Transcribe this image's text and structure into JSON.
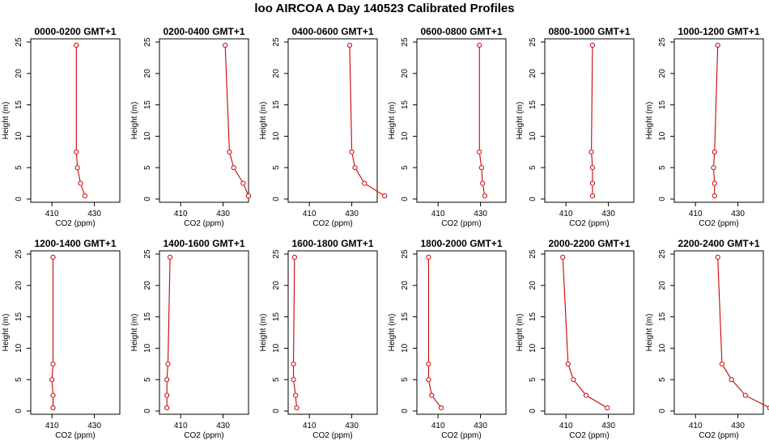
{
  "page": {
    "title": "loo AIRCOA A  Day 140523  Calibrated Profiles"
  },
  "chart_data": [
    {
      "type": "line",
      "title": "0000-0200 GMT+1",
      "xlabel": "CO2 (ppm)",
      "ylabel": "Height (m)",
      "xlim": [
        400,
        442
      ],
      "ylim": [
        0,
        25
      ],
      "x_ticks": [
        410,
        430
      ],
      "y_ticks": [
        0,
        5,
        10,
        15,
        20,
        25
      ],
      "color": "#cc0000",
      "series": [
        {
          "x": [
            425.5,
            423.5,
            422.0,
            421.5,
            421.5
          ],
          "y": [
            0.5,
            2.5,
            5,
            7.5,
            24.5
          ]
        }
      ]
    },
    {
      "type": "line",
      "title": "0200-0400 GMT+1",
      "xlabel": "CO2 (ppm)",
      "ylabel": "Height (m)",
      "xlim": [
        400,
        442
      ],
      "ylim": [
        0,
        25
      ],
      "x_ticks": [
        410,
        430
      ],
      "y_ticks": [
        0,
        5,
        10,
        15,
        20,
        25
      ],
      "color": "#cc0000",
      "series": [
        {
          "x": [
            442.0,
            439.5,
            435.0,
            433.0,
            431.0
          ],
          "y": [
            0.5,
            2.5,
            5,
            7.5,
            24.5
          ]
        }
      ]
    },
    {
      "type": "line",
      "title": "0400-0600 GMT+1",
      "xlabel": "CO2 (ppm)",
      "ylabel": "Height (m)",
      "xlim": [
        400,
        442
      ],
      "ylim": [
        0,
        25
      ],
      "x_ticks": [
        410,
        430
      ],
      "y_ticks": [
        0,
        5,
        10,
        15,
        20,
        25
      ],
      "color": "#cc0000",
      "series": [
        {
          "x": [
            445.5,
            436.0,
            431.5,
            430.0,
            429.0
          ],
          "y": [
            0.5,
            2.5,
            5,
            7.5,
            24.5
          ]
        }
      ]
    },
    {
      "type": "line",
      "title": "0600-0800 GMT+1",
      "xlabel": "CO2 (ppm)",
      "ylabel": "Height (m)",
      "xlim": [
        400,
        442
      ],
      "ylim": [
        0,
        25
      ],
      "x_ticks": [
        410,
        430
      ],
      "y_ticks": [
        0,
        5,
        10,
        15,
        20,
        25
      ],
      "color": "#cc0000",
      "series": [
        {
          "x": [
            432.0,
            431.0,
            430.5,
            429.5,
            429.5
          ],
          "y": [
            0.5,
            2.5,
            5,
            7.5,
            24.5
          ]
        }
      ]
    },
    {
      "type": "line",
      "title": "0800-1000 GMT+1",
      "xlabel": "CO2 (ppm)",
      "ylabel": "Height (m)",
      "xlim": [
        400,
        442
      ],
      "ylim": [
        0,
        25
      ],
      "x_ticks": [
        410,
        430
      ],
      "y_ticks": [
        0,
        5,
        10,
        15,
        20,
        25
      ],
      "color": "#cc0000",
      "series": [
        {
          "x": [
            422.5,
            422.5,
            422.5,
            422.0,
            422.5
          ],
          "y": [
            0.5,
            2.5,
            5,
            7.5,
            24.5
          ]
        }
      ]
    },
    {
      "type": "line",
      "title": "1000-1200 GMT+1",
      "xlabel": "CO2 (ppm)",
      "ylabel": "Height (m)",
      "xlim": [
        400,
        442
      ],
      "ylim": [
        0,
        25
      ],
      "x_ticks": [
        410,
        430
      ],
      "y_ticks": [
        0,
        5,
        10,
        15,
        20,
        25
      ],
      "color": "#cc0000",
      "series": [
        {
          "x": [
            419.0,
            419.0,
            418.5,
            419.0,
            420.5
          ],
          "y": [
            0.5,
            2.5,
            5,
            7.5,
            24.5
          ]
        }
      ]
    },
    {
      "type": "line",
      "title": "1200-1400 GMT+1",
      "xlabel": "CO2 (ppm)",
      "ylabel": "Height (m)",
      "xlim": [
        400,
        442
      ],
      "ylim": [
        0,
        25
      ],
      "x_ticks": [
        410,
        430
      ],
      "y_ticks": [
        0,
        5,
        10,
        15,
        20,
        25
      ],
      "color": "#cc0000",
      "series": [
        {
          "x": [
            410.5,
            410.5,
            410.0,
            410.5,
            410.5
          ],
          "y": [
            0.5,
            2.5,
            5,
            7.5,
            24.5
          ]
        }
      ]
    },
    {
      "type": "line",
      "title": "1400-1600 GMT+1",
      "xlabel": "CO2 (ppm)",
      "ylabel": "Height (m)",
      "xlim": [
        400,
        442
      ],
      "ylim": [
        0,
        25
      ],
      "x_ticks": [
        410,
        430
      ],
      "y_ticks": [
        0,
        5,
        10,
        15,
        20,
        25
      ],
      "color": "#cc0000",
      "series": [
        {
          "x": [
            403.5,
            403.5,
            403.5,
            404.0,
            405.0
          ],
          "y": [
            0.5,
            2.5,
            5,
            7.5,
            24.5
          ]
        }
      ]
    },
    {
      "type": "line",
      "title": "1600-1800 GMT+1",
      "xlabel": "CO2 (ppm)",
      "ylabel": "Height (m)",
      "xlim": [
        400,
        442
      ],
      "ylim": [
        0,
        25
      ],
      "x_ticks": [
        410,
        430
      ],
      "y_ticks": [
        0,
        5,
        10,
        15,
        20,
        25
      ],
      "color": "#cc0000",
      "series": [
        {
          "x": [
            404.0,
            403.5,
            402.5,
            402.5,
            403.0
          ],
          "y": [
            0.5,
            2.5,
            5,
            7.5,
            24.5
          ]
        }
      ]
    },
    {
      "type": "line",
      "title": "1800-2000 GMT+1",
      "xlabel": "CO2 (ppm)",
      "ylabel": "Height (m)",
      "xlim": [
        400,
        442
      ],
      "ylim": [
        0,
        25
      ],
      "x_ticks": [
        410,
        430
      ],
      "y_ticks": [
        0,
        5,
        10,
        15,
        20,
        25
      ],
      "color": "#cc0000",
      "series": [
        {
          "x": [
            411.5,
            407.0,
            405.5,
            405.5,
            405.5
          ],
          "y": [
            0.5,
            2.5,
            5,
            7.5,
            24.5
          ]
        }
      ]
    },
    {
      "type": "line",
      "title": "2000-2200 GMT+1",
      "xlabel": "CO2 (ppm)",
      "ylabel": "Height (m)",
      "xlim": [
        400,
        442
      ],
      "ylim": [
        0,
        25
      ],
      "x_ticks": [
        410,
        430
      ],
      "y_ticks": [
        0,
        5,
        10,
        15,
        20,
        25
      ],
      "color": "#cc0000",
      "series": [
        {
          "x": [
            429.5,
            419.5,
            413.5,
            411.0,
            408.5
          ],
          "y": [
            0.5,
            2.5,
            5,
            7.5,
            24.5
          ]
        }
      ]
    },
    {
      "type": "line",
      "title": "2200-2400 GMT+1",
      "xlabel": "CO2 (ppm)",
      "ylabel": "Height (m)",
      "xlim": [
        400,
        442
      ],
      "ylim": [
        0,
        25
      ],
      "x_ticks": [
        410,
        430
      ],
      "y_ticks": [
        0,
        5,
        10,
        15,
        20,
        25
      ],
      "color": "#cc0000",
      "series": [
        {
          "x": [
            445.0,
            433.5,
            427.0,
            422.5,
            420.5
          ],
          "y": [
            0.5,
            2.5,
            5,
            7.5,
            24.5
          ]
        }
      ]
    }
  ]
}
